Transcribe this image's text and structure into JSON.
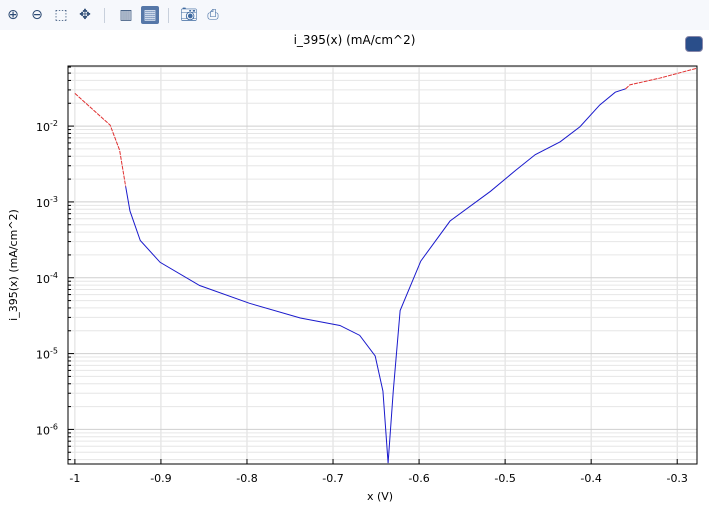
{
  "toolbar": {
    "buttons": [
      {
        "icon": "zoom-in-icon"
      },
      {
        "icon": "zoom-out-icon"
      },
      {
        "icon": "zoom-box-icon"
      },
      {
        "icon": "zoom-extents-icon"
      },
      {
        "icon": "grid-lines-icon"
      },
      {
        "icon": "grid-toggle-icon"
      },
      {
        "icon": "camera-icon"
      },
      {
        "icon": "print-icon"
      }
    ]
  },
  "corner_icon": "graphics-window-icon",
  "chart_data": {
    "type": "line",
    "title": "i_395(x) (mA/cm^2)",
    "xlabel": "x (V)",
    "ylabel": "i_395(x) (mA/cm^2)",
    "xlim": [
      -1.008,
      -0.277
    ],
    "ylim": [
      3.5e-07,
      0.062
    ],
    "yscale": "log",
    "grid": true,
    "xticks": [
      "-1",
      "-0.9",
      "-0.8",
      "-0.7",
      "-0.6",
      "-0.5",
      "-0.4",
      "-0.3"
    ],
    "xtick_values": [
      -1,
      -0.9,
      -0.8,
      -0.7,
      -0.6,
      -0.5,
      -0.4,
      -0.3
    ],
    "yticks": [
      "10",
      "10",
      "10",
      "10",
      "10"
    ],
    "ytick_exponents": [
      "-2",
      "-3",
      "-4",
      "-5",
      "-6"
    ],
    "ytick_values": [
      0.01,
      0.001,
      0.0001,
      1e-05,
      1e-06
    ],
    "colors": {
      "cathodic_tail": "#e03030",
      "main": "#1a1acc",
      "anodic_tail": "#e03030"
    },
    "series": [
      {
        "color_key": "cathodic_tail",
        "x": [
          -1,
          -0.959,
          -0.948,
          -0.941
        ],
        "y": [
          0.027,
          0.0103,
          0.0048,
          0.0016
        ]
      },
      {
        "color_key": "main",
        "x": [
          -0.941,
          -0.936,
          -0.924,
          -0.901,
          -0.855,
          -0.797,
          -0.738,
          -0.692,
          -0.669,
          -0.651,
          -0.642,
          -0.636,
          -0.63,
          -0.622,
          -0.598,
          -0.564,
          -0.517,
          -0.488,
          -0.465,
          -0.436,
          -0.413,
          -0.39,
          -0.372,
          -0.36
        ],
        "y": [
          0.0016,
          0.00076,
          0.00031,
          0.00016,
          7.9e-05,
          4.6e-05,
          2.95e-05,
          2.35e-05,
          1.74e-05,
          9.3e-06,
          3.2e-06,
          3.6e-07,
          3.2e-06,
          3.7e-05,
          0.000166,
          0.00056,
          0.00138,
          0.0026,
          0.0042,
          0.0062,
          0.0098,
          0.019,
          0.028,
          0.031
        ]
      },
      {
        "color_key": "anodic_tail",
        "x": [
          -0.36,
          -0.355,
          -0.32,
          -0.277
        ],
        "y": [
          0.031,
          0.035,
          0.043,
          0.058
        ]
      }
    ]
  }
}
